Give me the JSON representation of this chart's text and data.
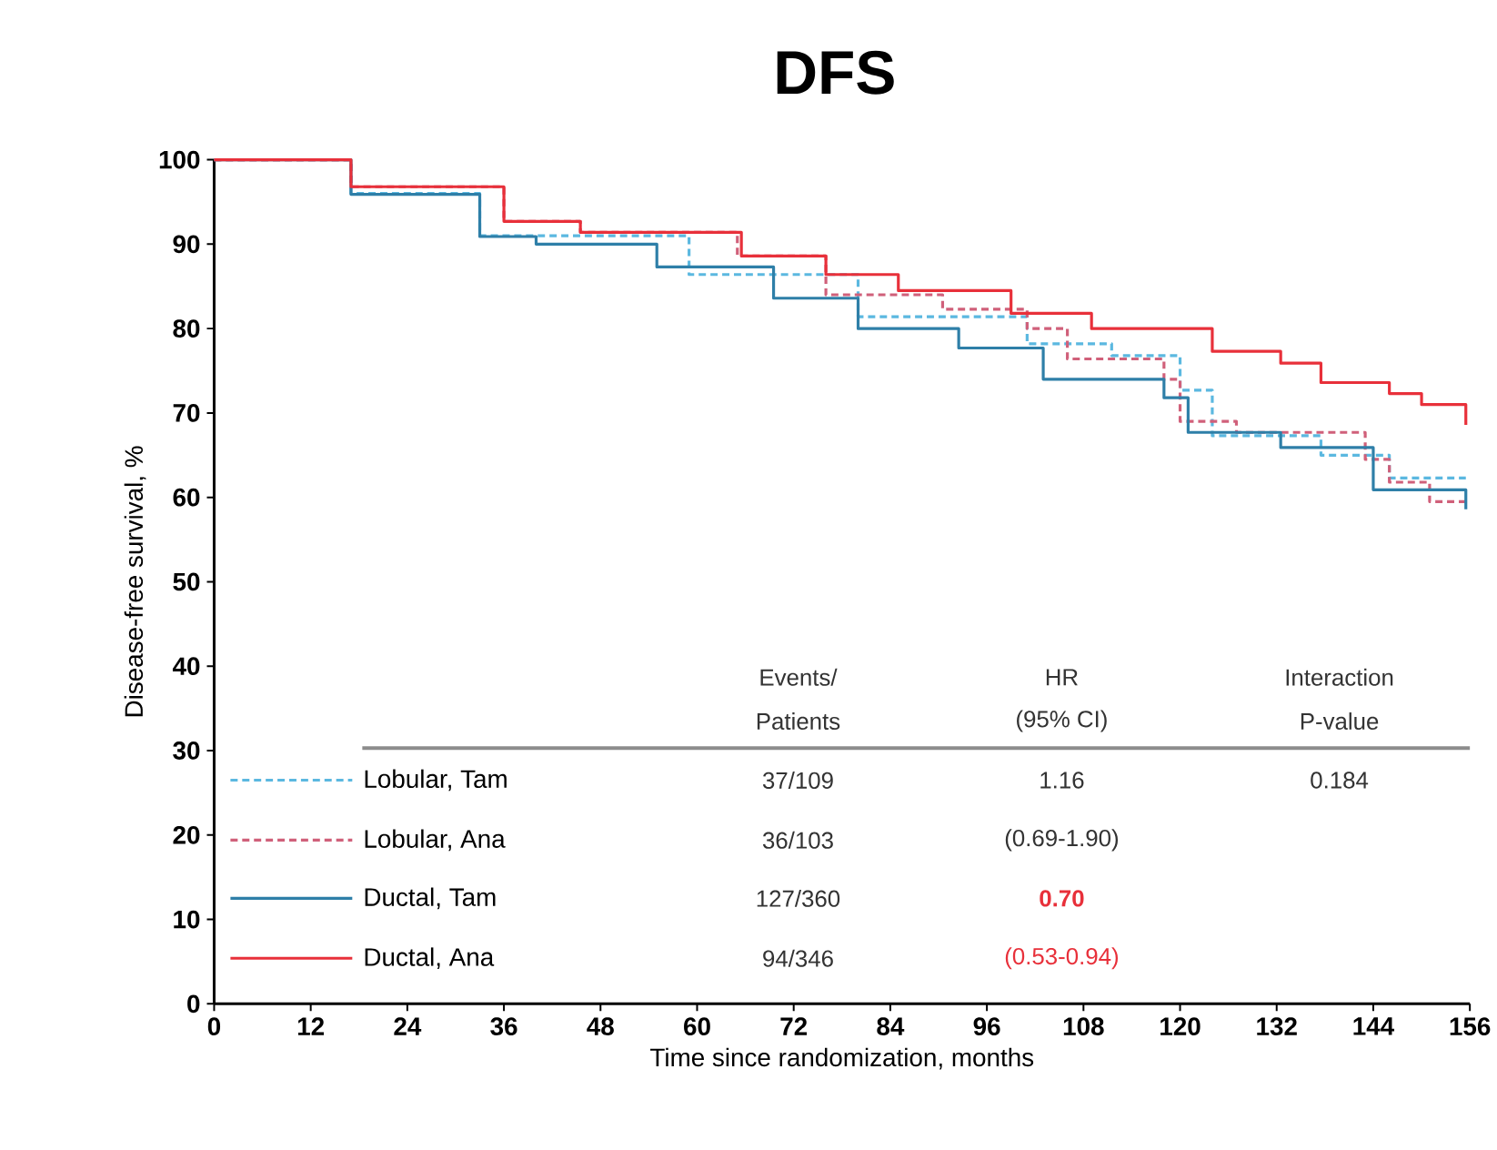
{
  "chart_data": {
    "type": "step",
    "title": "DFS",
    "xlabel": "Time since randomization, months",
    "ylabel": "Disease-free survival, %",
    "xlim": [
      0,
      156
    ],
    "ylim": [
      0,
      100
    ],
    "xticks": [
      0,
      12,
      24,
      36,
      48,
      60,
      72,
      84,
      96,
      108,
      120,
      132,
      144,
      156
    ],
    "yticks": [
      0,
      10,
      20,
      30,
      40,
      50,
      60,
      70,
      80,
      90,
      100
    ],
    "legend": "bottom left",
    "series": [
      {
        "name": "Lobular, Tam",
        "color": "#5bb8e0",
        "line_style": "dashed",
        "x": [
          0,
          17,
          33,
          59,
          80,
          101,
          111.5,
          120,
          124,
          137.5,
          146,
          155.5
        ],
        "values": [
          100,
          96,
          91,
          86.4,
          81.4,
          78.2,
          76.8,
          72.7,
          67.3,
          65,
          62.3,
          62.3
        ]
      },
      {
        "name": "Lobular, Ana",
        "color": "#d0607a",
        "line_style": "dashed",
        "x": [
          0,
          17,
          36,
          45.5,
          65,
          76,
          90.5,
          101,
          106,
          118,
          120,
          127,
          143,
          146,
          151,
          155.5
        ],
        "values": [
          100,
          96.8,
          92.7,
          91.4,
          88.6,
          84,
          82.3,
          80,
          76.4,
          74,
          69,
          67.7,
          64.5,
          61.8,
          59.5,
          59.5
        ]
      },
      {
        "name": "Ductal, Tam",
        "color": "#2e7fa8",
        "line_style": "solid",
        "x": [
          0,
          17,
          33,
          40,
          55,
          69.5,
          80,
          92.5,
          103,
          118,
          121,
          132.5,
          144,
          155.5
        ],
        "values": [
          100,
          95.9,
          90.9,
          90,
          87.3,
          83.6,
          80,
          77.7,
          74,
          71.8,
          67.7,
          65.9,
          60.9,
          58.6
        ]
      },
      {
        "name": "Ductal, Ana",
        "color": "#e8303a",
        "line_style": "solid",
        "x": [
          0,
          17,
          36,
          45.5,
          65.5,
          76,
          85,
          99,
          109,
          124,
          132.5,
          137.5,
          146,
          150,
          155.5
        ],
        "values": [
          100,
          96.8,
          92.7,
          91.4,
          88.6,
          86.4,
          84.5,
          81.8,
          80,
          77.3,
          75.9,
          73.6,
          72.3,
          71,
          68.6
        ]
      }
    ],
    "annotations": [
      "Events/",
      "Patients",
      "HR",
      "(95% CI)",
      "Interaction",
      "P-value",
      "37/109",
      "36/103",
      "127/360",
      "94/346",
      "1.16",
      "(0.69-1.90)",
      "**0.70**",
      "(0.53-0.94)",
      "0.184"
    ]
  }
}
